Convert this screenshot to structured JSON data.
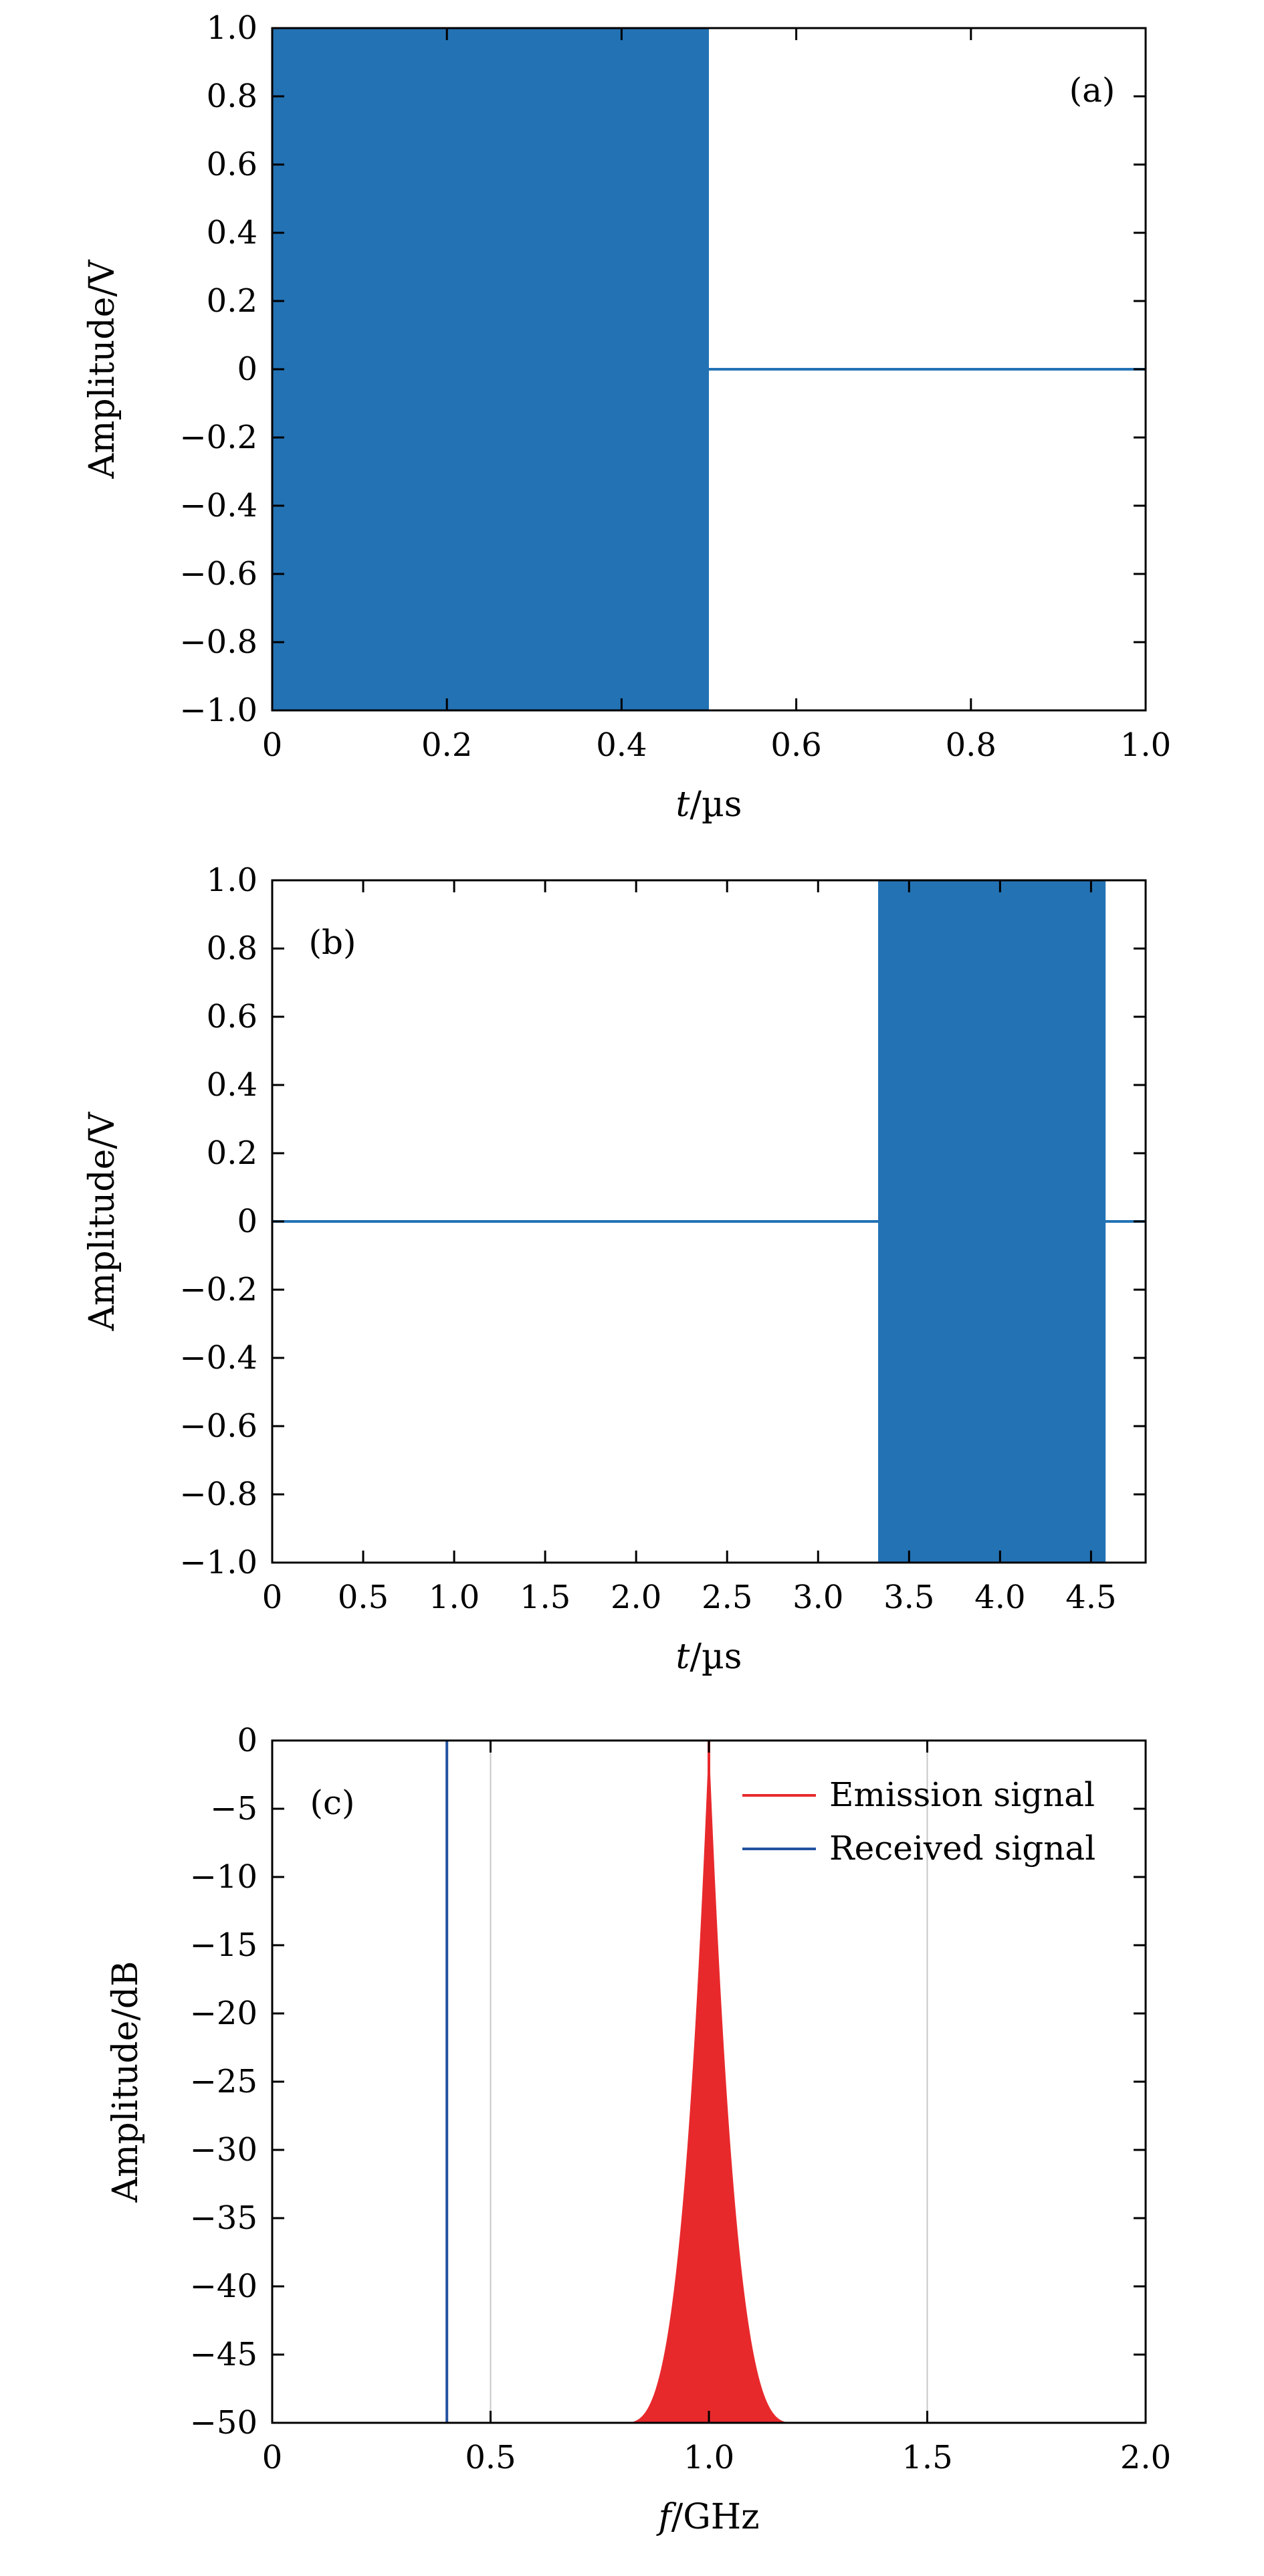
{
  "colors": {
    "signal_fill": "#2372b4",
    "emission": "#e8292c",
    "received": "#2352a0",
    "axis": "#000000",
    "grid": "#c8c8c8"
  },
  "chart_data": [
    {
      "panel_label": "(a)",
      "type": "line",
      "xlabel_var": "t",
      "xlabel_unit": "/µs",
      "ylabel": "Amplitude/V",
      "xlim": [
        0,
        1.0
      ],
      "ylim": [
        -1.0,
        1.0
      ],
      "xticks": [
        "0",
        "0.2",
        "0.4",
        "0.6",
        "0.8",
        "1.0"
      ],
      "xtick_values": [
        0,
        0.2,
        0.4,
        0.6,
        0.8,
        1.0
      ],
      "yticks": [
        "1.0",
        "0.8",
        "0.6",
        "0.4",
        "0.2",
        "0",
        "−0.2",
        "−0.4",
        "−0.6",
        "−0.8",
        "−1.0"
      ],
      "ytick_values": [
        1.0,
        0.8,
        0.6,
        0.4,
        0.2,
        0,
        -0.2,
        -0.4,
        -0.6,
        -0.8,
        -1.0
      ],
      "grid": false,
      "series": [
        {
          "kind": "burst",
          "x_start": 0,
          "x_end": 0.5,
          "amplitude": 1.0,
          "baseline": 0
        }
      ]
    },
    {
      "panel_label": "(b)",
      "type": "line",
      "xlabel_var": "t",
      "xlabel_unit": "/µs",
      "ylabel": "Amplitude/V",
      "xlim": [
        0,
        4.8
      ],
      "ylim": [
        -1.0,
        1.0
      ],
      "xticks": [
        "0",
        "0.5",
        "1.0",
        "1.5",
        "2.0",
        "2.5",
        "3.0",
        "3.5",
        "4.0",
        "4.5"
      ],
      "xtick_values": [
        0,
        0.5,
        1.0,
        1.5,
        2.0,
        2.5,
        3.0,
        3.5,
        4.0,
        4.5
      ],
      "yticks": [
        "1.0",
        "0.8",
        "0.6",
        "0.4",
        "0.2",
        "0",
        "−0.2",
        "−0.4",
        "−0.6",
        "−0.8",
        "−1.0"
      ],
      "ytick_values": [
        1.0,
        0.8,
        0.6,
        0.4,
        0.2,
        0,
        -0.2,
        -0.4,
        -0.6,
        -0.8,
        -1.0
      ],
      "grid": false,
      "series": [
        {
          "kind": "burst",
          "x_start": 3.33,
          "x_end": 4.58,
          "amplitude": 1.0,
          "baseline": 0
        }
      ]
    },
    {
      "panel_label": "(c)",
      "type": "line",
      "xlabel_var": "f",
      "xlabel_unit": "/GHz",
      "ylabel": "Amplitude/dB",
      "xlim": [
        0,
        2.0
      ],
      "ylim": [
        -50,
        0
      ],
      "xticks": [
        "0",
        "0.5",
        "1.0",
        "1.5",
        "2.0"
      ],
      "xtick_values": [
        0,
        0.5,
        1.0,
        1.5,
        2.0
      ],
      "yticks": [
        "0",
        "−5",
        "−10",
        "−15",
        "−20",
        "−25",
        "−30",
        "−35",
        "−40",
        "−45",
        "−50"
      ],
      "ytick_values": [
        0,
        -5,
        -10,
        -15,
        -20,
        -25,
        -30,
        -35,
        -40,
        -45,
        -50
      ],
      "grid": true,
      "legend_position": "top-right",
      "series": [
        {
          "name": "Emission signal",
          "color": "#e8292c",
          "center": 1.0,
          "half_width_at_floor": 0.2,
          "peak": 0,
          "floor": -50
        },
        {
          "name": "Received signal",
          "color": "#2352a0",
          "center": 0.4,
          "half_width_at_floor": 0.08,
          "peak": 0,
          "floor": -50
        }
      ]
    }
  ]
}
